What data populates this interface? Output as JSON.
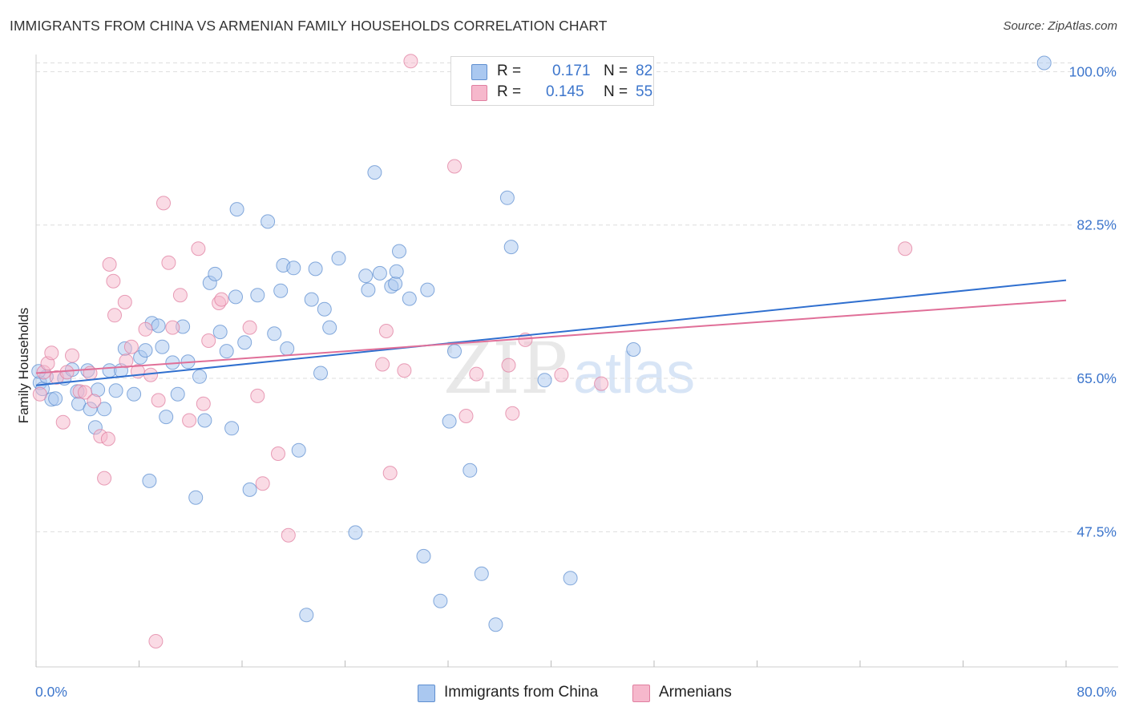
{
  "title": "IMMIGRANTS FROM CHINA VS ARMENIAN FAMILY HOUSEHOLDS CORRELATION CHART",
  "source": "Source: ZipAtlas.com",
  "watermark": {
    "zip": "ZIP",
    "atlas": "atlas"
  },
  "legend_top": [
    {
      "r_label": "R =",
      "r_value": "0.171",
      "n_label": "N =",
      "n_value": "82"
    },
    {
      "r_label": "R =",
      "r_value": "0.145",
      "n_label": "N =",
      "n_value": "55"
    }
  ],
  "legend_bottom": [
    {
      "label": "Immigrants from China"
    },
    {
      "label": "Armenians"
    }
  ],
  "colors": {
    "china_fill": "#aac8f0",
    "china_stroke": "#5f8fd0",
    "china_line": "#2f6fcf",
    "arm_fill": "#f6b8cc",
    "arm_stroke": "#e07fa0",
    "arm_line": "#e06f98",
    "tick_label": "#3d76cc",
    "grid": "#dddddd"
  },
  "chart_data": {
    "type": "scatter",
    "title": "IMMIGRANTS FROM CHINA VS ARMENIAN FAMILY HOUSEHOLDS CORRELATION CHART",
    "xlabel": "",
    "ylabel": "Family Households",
    "xlim": [
      0,
      80
    ],
    "ylim": [
      33,
      101
    ],
    "x_tick_labels": [
      {
        "value": 0,
        "label": "0.0%"
      },
      {
        "value": 80,
        "label": "80.0%"
      }
    ],
    "y_tick_labels": [
      {
        "value": 47.5,
        "label": "47.5%"
      },
      {
        "value": 65.0,
        "label": "65.0%"
      },
      {
        "value": 82.5,
        "label": "82.5%"
      },
      {
        "value": 100.0,
        "label": "100.0%"
      }
    ],
    "x_minor_ticks": [
      0,
      8,
      16,
      24,
      32,
      40,
      48,
      56,
      64,
      72,
      80
    ],
    "series": [
      {
        "name": "Immigrants from China",
        "trend": {
          "x0": 0,
          "y0": 64.2,
          "x1": 80,
          "y1": 76.2
        },
        "points": [
          [
            0.3,
            64.5
          ],
          [
            0.5,
            63.8
          ],
          [
            0.8,
            65.2
          ],
          [
            1.2,
            62.6
          ],
          [
            1.5,
            62.7
          ],
          [
            2.2,
            65.0
          ],
          [
            2.8,
            66.0
          ],
          [
            3.2,
            63.5
          ],
          [
            3.3,
            62.1
          ],
          [
            4.0,
            65.9
          ],
          [
            4.2,
            61.5
          ],
          [
            4.6,
            59.4
          ],
          [
            4.8,
            63.7
          ],
          [
            5.3,
            61.5
          ],
          [
            5.7,
            65.9
          ],
          [
            6.2,
            63.6
          ],
          [
            6.6,
            65.9
          ],
          [
            6.9,
            68.4
          ],
          [
            7.6,
            63.2
          ],
          [
            8.1,
            67.4
          ],
          [
            8.5,
            68.2
          ],
          [
            8.8,
            53.3
          ],
          [
            9.0,
            71.3
          ],
          [
            9.5,
            71.0
          ],
          [
            9.8,
            68.6
          ],
          [
            10.1,
            60.6
          ],
          [
            10.6,
            66.8
          ],
          [
            11.0,
            63.2
          ],
          [
            11.4,
            70.9
          ],
          [
            11.8,
            66.9
          ],
          [
            12.4,
            51.4
          ],
          [
            12.7,
            65.2
          ],
          [
            13.1,
            60.2
          ],
          [
            13.5,
            75.9
          ],
          [
            13.9,
            76.9
          ],
          [
            14.3,
            70.3
          ],
          [
            14.8,
            68.1
          ],
          [
            15.2,
            59.3
          ],
          [
            15.5,
            74.3
          ],
          [
            15.6,
            84.3
          ],
          [
            16.2,
            69.1
          ],
          [
            16.6,
            52.3
          ],
          [
            17.2,
            74.5
          ],
          [
            18.0,
            82.9
          ],
          [
            18.5,
            70.1
          ],
          [
            19.0,
            75.0
          ],
          [
            19.2,
            77.9
          ],
          [
            19.5,
            68.4
          ],
          [
            20.0,
            77.6
          ],
          [
            20.4,
            56.8
          ],
          [
            21.4,
            74.0
          ],
          [
            21.7,
            77.5
          ],
          [
            22.1,
            65.6
          ],
          [
            22.4,
            72.9
          ],
          [
            22.8,
            70.8
          ],
          [
            23.5,
            78.7
          ],
          [
            24.8,
            47.4
          ],
          [
            25.6,
            76.7
          ],
          [
            25.8,
            75.1
          ],
          [
            26.3,
            88.5
          ],
          [
            26.7,
            77.0
          ],
          [
            27.6,
            75.5
          ],
          [
            27.9,
            75.8
          ],
          [
            28.0,
            77.2
          ],
          [
            28.2,
            79.5
          ],
          [
            29.0,
            74.1
          ],
          [
            30.1,
            44.7
          ],
          [
            30.4,
            75.1
          ],
          [
            31.4,
            39.6
          ],
          [
            32.1,
            60.1
          ],
          [
            32.5,
            68.1
          ],
          [
            33.7,
            54.5
          ],
          [
            34.6,
            42.7
          ],
          [
            35.7,
            36.9
          ],
          [
            36.6,
            85.6
          ],
          [
            36.9,
            80.0
          ],
          [
            39.5,
            64.8
          ],
          [
            41.5,
            42.2
          ],
          [
            46.4,
            68.3
          ],
          [
            78.3,
            101.0
          ],
          [
            21.0,
            38.0
          ],
          [
            0.2,
            65.8
          ]
        ]
      },
      {
        "name": "Armenians",
        "trend": {
          "x0": 0,
          "y0": 65.6,
          "x1": 80,
          "y1": 73.9
        },
        "points": [
          [
            0.3,
            63.2
          ],
          [
            0.6,
            65.7
          ],
          [
            0.9,
            66.7
          ],
          [
            1.2,
            67.9
          ],
          [
            1.6,
            65.1
          ],
          [
            2.1,
            60.0
          ],
          [
            2.4,
            65.7
          ],
          [
            2.8,
            67.6
          ],
          [
            3.4,
            63.5
          ],
          [
            3.8,
            63.4
          ],
          [
            4.2,
            65.6
          ],
          [
            4.5,
            62.4
          ],
          [
            5.0,
            58.4
          ],
          [
            5.3,
            53.6
          ],
          [
            5.6,
            58.1
          ],
          [
            5.7,
            78.0
          ],
          [
            6.1,
            72.2
          ],
          [
            6.0,
            76.1
          ],
          [
            6.9,
            73.7
          ],
          [
            7.0,
            67.0
          ],
          [
            7.4,
            68.6
          ],
          [
            7.9,
            65.8
          ],
          [
            8.5,
            70.6
          ],
          [
            8.9,
            65.4
          ],
          [
            9.3,
            35.0
          ],
          [
            9.5,
            62.5
          ],
          [
            9.9,
            85.0
          ],
          [
            10.3,
            78.2
          ],
          [
            10.6,
            70.8
          ],
          [
            11.2,
            74.5
          ],
          [
            11.9,
            60.2
          ],
          [
            12.6,
            79.8
          ],
          [
            13.0,
            62.1
          ],
          [
            13.4,
            69.3
          ],
          [
            14.2,
            73.6
          ],
          [
            14.4,
            74.0
          ],
          [
            16.6,
            70.8
          ],
          [
            17.2,
            63.0
          ],
          [
            17.6,
            53.0
          ],
          [
            18.8,
            56.4
          ],
          [
            19.6,
            47.1
          ],
          [
            26.9,
            66.6
          ],
          [
            27.2,
            70.4
          ],
          [
            27.5,
            54.2
          ],
          [
            28.6,
            65.9
          ],
          [
            29.1,
            101.2
          ],
          [
            32.5,
            89.2
          ],
          [
            33.4,
            60.7
          ],
          [
            34.2,
            65.5
          ],
          [
            36.7,
            66.5
          ],
          [
            37.0,
            61.0
          ],
          [
            38.0,
            69.4
          ],
          [
            40.8,
            65.4
          ],
          [
            43.9,
            64.4
          ],
          [
            67.5,
            79.8
          ]
        ]
      }
    ]
  }
}
